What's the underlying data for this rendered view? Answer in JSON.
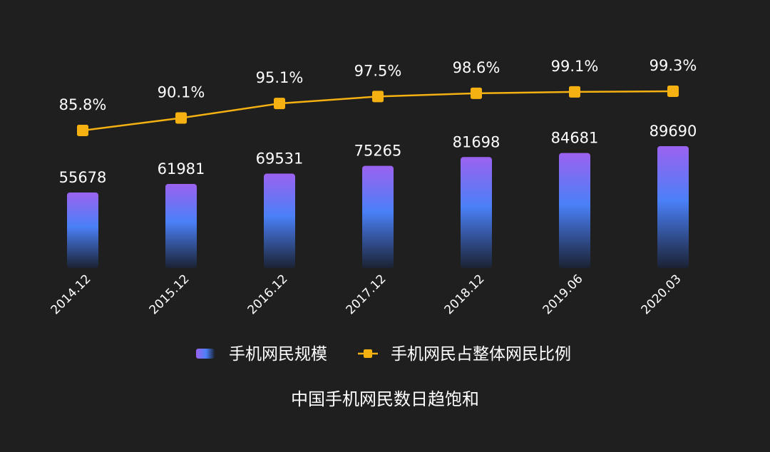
{
  "chart_data": {
    "type": "bar",
    "title": "",
    "categories": [
      "2014.12",
      "2015.12",
      "2016.12",
      "2017.12",
      "2018.12",
      "2019.06",
      "2020.03"
    ],
    "series": [
      {
        "name": "手机网民规模",
        "type": "bar",
        "values": [
          55678,
          61981,
          69531,
          75265,
          81698,
          84681,
          89690
        ],
        "value_labels": [
          "55678",
          "61981",
          "69531",
          "75265",
          "81698",
          "84681",
          "89690"
        ],
        "color": "#4f7cf7",
        "gradient": [
          "#9b62f0",
          "#4a80f7",
          "#1b2233"
        ]
      },
      {
        "name": "手机网民占整体网民比例",
        "type": "line",
        "values": [
          85.8,
          90.1,
          95.1,
          97.5,
          98.6,
          99.1,
          99.3
        ],
        "value_labels": [
          "85.8%",
          "90.1%",
          "95.1%",
          "97.5%",
          "98.6%",
          "99.1%",
          "99.3%"
        ],
        "color": "#f5b111"
      }
    ],
    "grid": false,
    "legend_position": "bottom",
    "caption": "中国手机网民数日趋饱和"
  }
}
